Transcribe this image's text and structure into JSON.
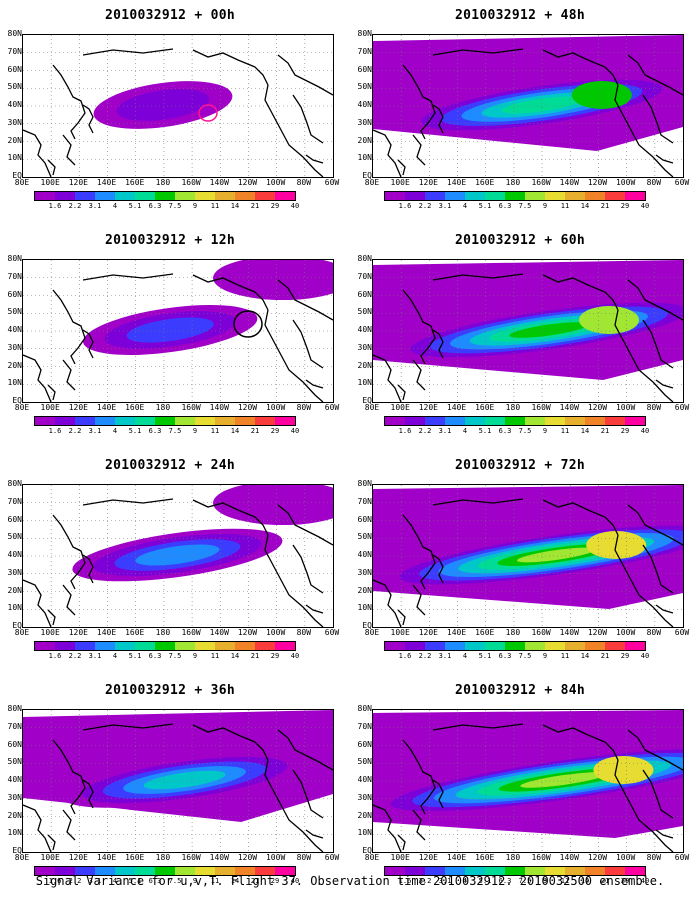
{
  "panels": [
    {
      "title": "2010032912 + 00h",
      "level": 0,
      "circle": "magenta"
    },
    {
      "title": "2010032912 + 12h",
      "level": 1,
      "circle": "black"
    },
    {
      "title": "2010032912 + 24h",
      "level": 2,
      "circle": ""
    },
    {
      "title": "2010032912 + 36h",
      "level": 3,
      "circle": ""
    },
    {
      "title": "2010032912 + 48h",
      "level": 4,
      "circle": ""
    },
    {
      "title": "2010032912 + 60h",
      "level": 5,
      "circle": ""
    },
    {
      "title": "2010032912 + 72h",
      "level": 6,
      "circle": ""
    },
    {
      "title": "2010032912 + 84h",
      "level": 7,
      "circle": ""
    }
  ],
  "lat_labels": [
    "80N",
    "70N",
    "60N",
    "50N",
    "40N",
    "30N",
    "20N",
    "10N",
    "EQ"
  ],
  "lon_labels": [
    "80E",
    "100E",
    "120E",
    "140E",
    "160E",
    "180",
    "160W",
    "140W",
    "120W",
    "100W",
    "80W",
    "60W"
  ],
  "colorbar": {
    "labels": [
      "1.6",
      "2.2",
      "3.1",
      "4",
      "5.1",
      "6.3",
      "7.5",
      "9",
      "11",
      "14",
      "21",
      "29",
      "40"
    ],
    "colors": [
      "#a000c8",
      "#7d00d8",
      "#3c3cff",
      "#1e8cff",
      "#00c8c8",
      "#00dc96",
      "#00c800",
      "#a0e632",
      "#e6dc32",
      "#e6af2d",
      "#f08228",
      "#fa3c3c",
      "#ff00a0"
    ]
  },
  "caption": "Signal Variance for u,v,T. Flight 37. Observation time 2010032912. 2010032500 ensemble."
}
